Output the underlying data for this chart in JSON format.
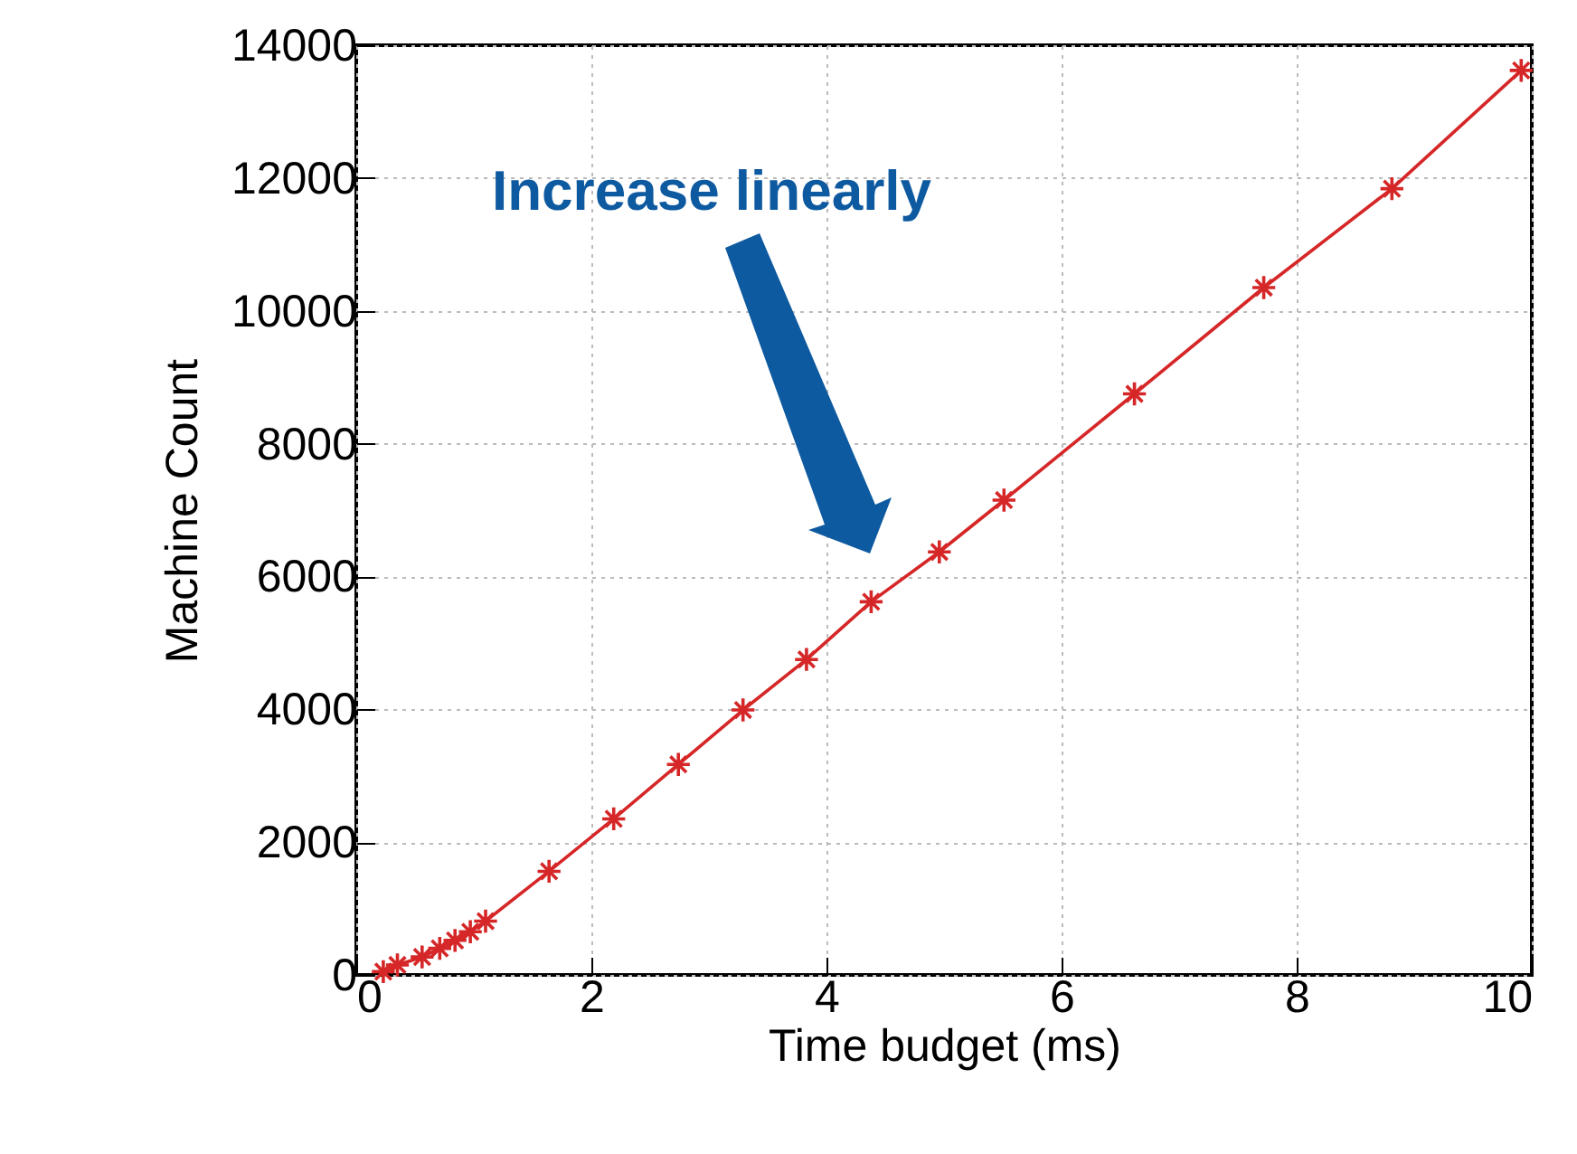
{
  "chart_data": {
    "type": "line",
    "xlabel": "Time budget (ms)",
    "ylabel": "Machine Count",
    "x": [
      0.23,
      0.35,
      0.56,
      0.71,
      0.84,
      0.97,
      1.1,
      1.64,
      2.19,
      2.74,
      3.29,
      3.83,
      4.38,
      4.96,
      5.51,
      6.62,
      7.72,
      8.81,
      9.91
    ],
    "series": [
      {
        "color": "#d62728",
        "values": [
          50,
          150,
          270,
          400,
          520,
          650,
          810,
          1560,
          2350,
          3170,
          3990,
          4750,
          5620,
          6370,
          7150,
          8750,
          10350,
          11840,
          13620
        ]
      }
    ],
    "xlim": [
      0,
      10
    ],
    "xticks": [
      0,
      2,
      4,
      6,
      8,
      10
    ],
    "ylim": [
      0,
      14000
    ],
    "yticks": [
      0,
      2000,
      4000,
      6000,
      8000,
      10000,
      12000,
      14000
    ],
    "grid": true,
    "marker": "cross",
    "line_style": "solid",
    "legend": false,
    "annotations": [
      "Increase linearly"
    ]
  }
}
